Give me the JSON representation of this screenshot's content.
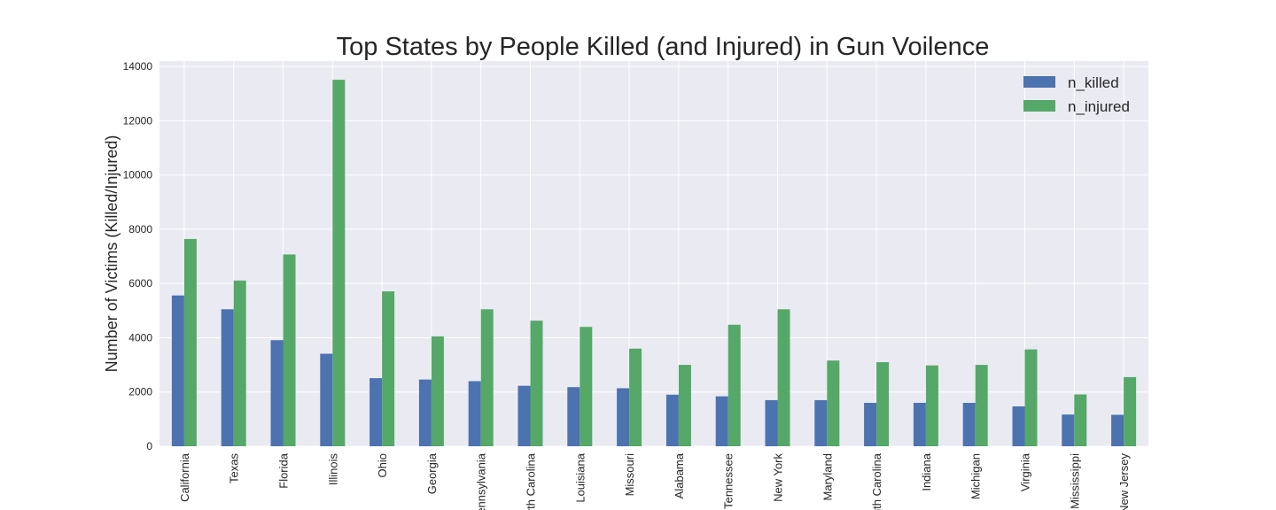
{
  "chart_data": {
    "type": "bar",
    "title": "Top States by People Killed (and Injured) in Gun Voilence",
    "xlabel": "",
    "ylabel": "Number of Victims (Killed/Injured)",
    "ylim": [
      0,
      14200
    ],
    "yticks": [
      0,
      2000,
      4000,
      6000,
      8000,
      10000,
      12000,
      14000
    ],
    "grid": true,
    "legend_position": "top-right",
    "categories": [
      "California",
      "Texas",
      "Florida",
      "Illinois",
      "Ohio",
      "Georgia",
      "Pennsylvania",
      "North Carolina",
      "Louisiana",
      "Missouri",
      "Alabama",
      "Tennessee",
      "New York",
      "Maryland",
      "South Carolina",
      "Indiana",
      "Michigan",
      "Virginia",
      "Mississippi",
      "New Jersey"
    ],
    "series": [
      {
        "name": "n_killed",
        "color": "#4c72b0",
        "values": [
          5560,
          5050,
          3910,
          3410,
          2510,
          2460,
          2400,
          2230,
          2180,
          2140,
          1900,
          1840,
          1700,
          1700,
          1600,
          1600,
          1600,
          1470,
          1170,
          1160
        ]
      },
      {
        "name": "n_injured",
        "color": "#55a868",
        "values": [
          7640,
          6110,
          7070,
          13510,
          5710,
          4050,
          5050,
          4630,
          4400,
          3600,
          3000,
          4480,
          5050,
          3160,
          3100,
          2980,
          3000,
          3570,
          1910,
          2550
        ]
      }
    ],
    "plot_background": "#eaeaf2",
    "grid_color": "#ffffff"
  }
}
